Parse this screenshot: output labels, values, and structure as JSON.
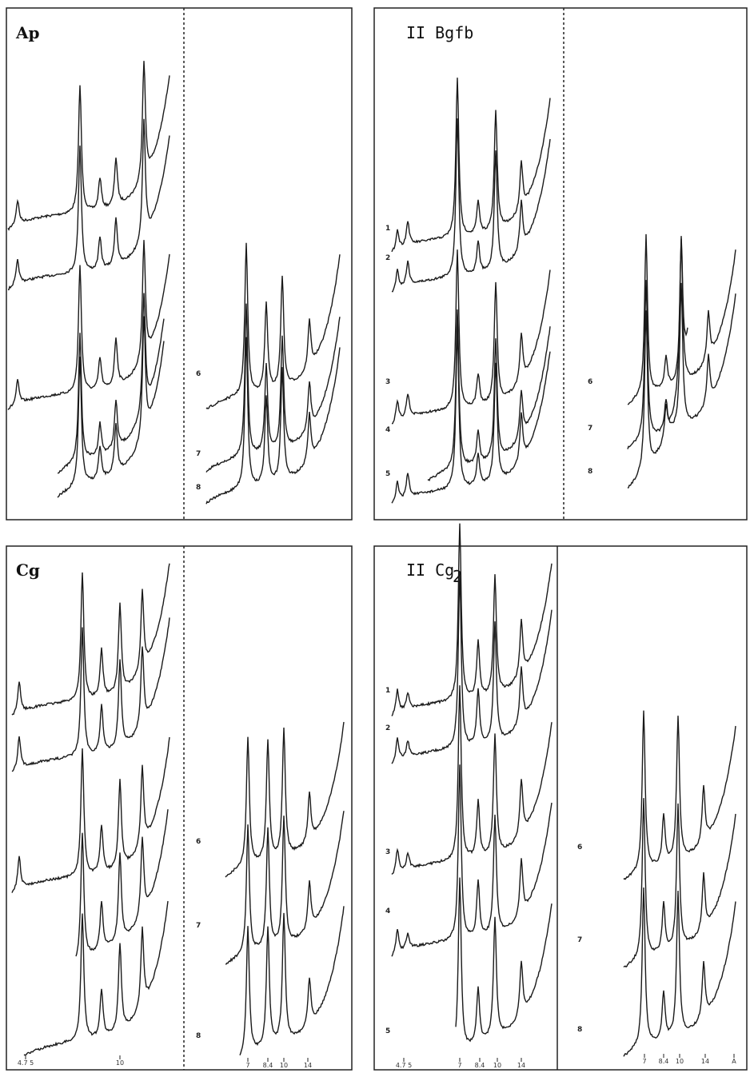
{
  "panels": [
    {
      "title": "Ap",
      "right": {
        "trace_labels": [
          "6",
          "7",
          "8"
        ]
      }
    },
    {
      "title": "II Bgfb",
      "left": {
        "trace_labels": [
          "1",
          "2",
          "3",
          "4",
          "5"
        ]
      },
      "right": {
        "trace_labels": [
          "6",
          "7",
          "8"
        ]
      }
    },
    {
      "title": "Cg",
      "left": {
        "ticks": [
          "4.7 5",
          "10"
        ]
      },
      "right": {
        "trace_labels": [
          "6",
          "7",
          "8"
        ],
        "ticks": [
          "7",
          "8.4",
          "10",
          "14"
        ]
      }
    },
    {
      "title": "II Cg",
      "title_subscript": "2",
      "left": {
        "trace_labels": [
          "1",
          "2",
          "3",
          "4",
          "5"
        ],
        "ticks": [
          "4.7 5",
          "7",
          "8.4",
          "10",
          "14"
        ]
      },
      "right": {
        "trace_labels": [
          "6",
          "7",
          "8"
        ],
        "ticks": [
          "7",
          "8.4",
          "10",
          "14",
          "A"
        ]
      }
    }
  ]
}
